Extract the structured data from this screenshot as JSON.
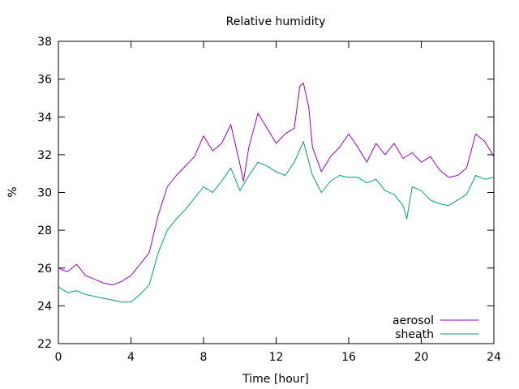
{
  "chart_data": {
    "type": "line",
    "title": "Relative humidity",
    "xlabel": "Time [hour]",
    "ylabel": "%",
    "xlim": [
      0,
      24
    ],
    "ylim": [
      22,
      38
    ],
    "x_ticks": [
      0,
      4,
      8,
      12,
      16,
      20,
      24
    ],
    "y_ticks": [
      22,
      24,
      26,
      28,
      30,
      32,
      34,
      36,
      38
    ],
    "grid": false,
    "legend_position": "bottom-right",
    "series": [
      {
        "name": "aerosol",
        "color": "#9400d3",
        "x": [
          0,
          0.5,
          1,
          1.5,
          2,
          2.5,
          3,
          3.5,
          4,
          4.5,
          5,
          5.5,
          6,
          6.5,
          7,
          7.5,
          8,
          8.5,
          9,
          9.5,
          10,
          10.2,
          10.5,
          11,
          11.5,
          12,
          12.5,
          13,
          13.3,
          13.5,
          13.8,
          14,
          14.5,
          15,
          15.5,
          16,
          16.5,
          17,
          17.5,
          18,
          18.5,
          19,
          19.5,
          20,
          20.5,
          21,
          21.5,
          22,
          22.5,
          23,
          23.5,
          24
        ],
        "y": [
          26.0,
          25.8,
          26.2,
          25.6,
          25.4,
          25.2,
          25.1,
          25.3,
          25.6,
          26.2,
          26.8,
          28.8,
          30.3,
          30.9,
          31.4,
          31.9,
          33.0,
          32.2,
          32.6,
          33.6,
          31.5,
          30.6,
          32.4,
          34.2,
          33.4,
          32.6,
          33.1,
          33.4,
          35.6,
          35.8,
          34.5,
          32.4,
          31.1,
          31.9,
          32.4,
          33.1,
          32.4,
          31.6,
          32.6,
          32.0,
          32.6,
          31.8,
          32.1,
          31.6,
          31.9,
          31.2,
          30.8,
          30.9,
          31.3,
          33.1,
          32.7,
          31.9
        ]
      },
      {
        "name": "sheath",
        "color": "#009e73",
        "x": [
          0,
          0.5,
          1,
          1.5,
          2,
          2.5,
          3,
          3.5,
          4,
          4.5,
          5,
          5.5,
          6,
          6.5,
          7,
          7.5,
          8,
          8.5,
          9,
          9.5,
          10,
          10.5,
          11,
          11.5,
          12,
          12.5,
          13,
          13.5,
          14,
          14.5,
          15,
          15.5,
          16,
          16.5,
          17,
          17.5,
          18,
          18.5,
          19,
          19.2,
          19.5,
          20,
          20.5,
          21,
          21.5,
          22,
          22.5,
          23,
          23.5,
          24
        ],
        "y": [
          25.0,
          24.7,
          24.8,
          24.6,
          24.5,
          24.4,
          24.3,
          24.2,
          24.2,
          24.6,
          25.1,
          26.8,
          28.0,
          28.6,
          29.1,
          29.7,
          30.3,
          30.0,
          30.6,
          31.3,
          30.1,
          30.9,
          31.6,
          31.4,
          31.1,
          30.9,
          31.6,
          32.7,
          30.9,
          30.0,
          30.6,
          30.9,
          30.8,
          30.8,
          30.5,
          30.7,
          30.1,
          29.9,
          29.3,
          28.6,
          30.3,
          30.1,
          29.6,
          29.4,
          29.3,
          29.6,
          29.9,
          30.9,
          30.7,
          30.8
        ]
      }
    ]
  }
}
